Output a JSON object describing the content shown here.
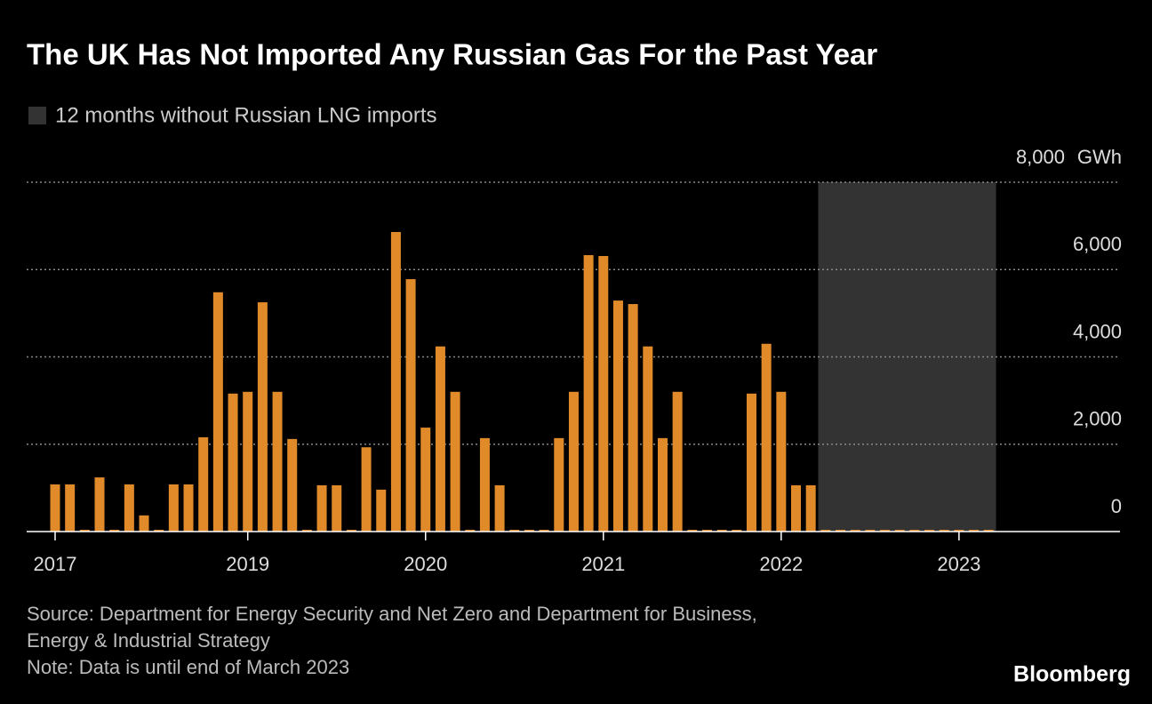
{
  "chart_data": {
    "type": "bar",
    "title": "The UK Has Not Imported Any Russian Gas For the Past Year",
    "y_unit": "GWh",
    "categories": [
      "2017",
      null,
      null,
      null,
      null,
      null,
      null,
      null,
      null,
      null,
      null,
      null,
      null,
      "2019",
      null,
      null,
      null,
      null,
      null,
      null,
      null,
      null,
      null,
      null,
      null,
      "2020",
      null,
      null,
      null,
      null,
      null,
      null,
      null,
      null,
      null,
      null,
      null,
      "2021",
      null,
      null,
      null,
      null,
      null,
      null,
      null,
      null,
      null,
      null,
      null,
      "2022",
      null,
      null,
      null,
      null,
      null,
      null,
      null,
      null,
      null,
      null,
      null,
      "2023",
      null,
      null
    ],
    "values": [
      1080,
      1080,
      0,
      1240,
      0,
      1080,
      370,
      0,
      1080,
      1080,
      2160,
      5480,
      3160,
      3200,
      5250,
      3200,
      2120,
      0,
      1060,
      1060,
      0,
      1930,
      960,
      6860,
      5780,
      2380,
      4240,
      3200,
      0,
      2140,
      1060,
      0,
      0,
      0,
      2140,
      3200,
      6330,
      6310,
      5290,
      5210,
      4240,
      2140,
      3200,
      0,
      0,
      0,
      0,
      3160,
      4300,
      3200,
      1060,
      1060,
      0,
      0,
      0,
      0,
      0,
      0,
      0,
      0,
      0,
      0,
      0,
      0
    ],
    "color": "#e08a2a",
    "ylim": [
      0,
      8000
    ],
    "yticks": [
      0,
      {
        "value": 2000,
        "label": "2,000"
      },
      {
        "value": 4000,
        "label": "4,000"
      },
      {
        "value": 6000,
        "label": "6,000"
      },
      {
        "value": 8000,
        "label": "8,000"
      }
    ],
    "grid": true,
    "shade": {
      "label": "12 months without Russian LNG imports",
      "color": "#333333",
      "last_n": 12
    },
    "source": [
      "Source: Department for Energy Security and Net Zero and Department for Business,",
      "Energy & Industrial Strategy"
    ],
    "note": "Note: Data is until end of March 2023",
    "brand": "Bloomberg"
  }
}
